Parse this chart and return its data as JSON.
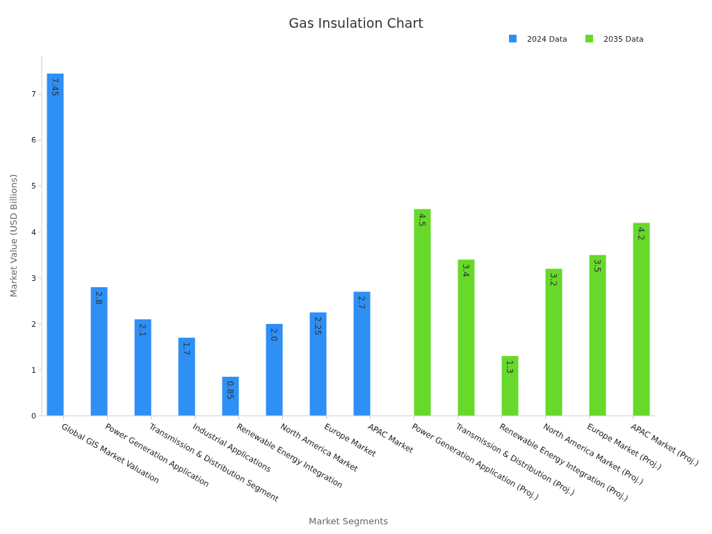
{
  "chart_data": {
    "type": "bar",
    "title": "Gas Insulation Chart",
    "xlabel": "Market Segments",
    "ylabel": "Market Value (USD Billions)",
    "categories": [
      "Global GIS Market Valuation",
      "Power Generation Application",
      "Transmission & Distribution Segment",
      "Industrial Applications",
      "Renewable Energy Integration",
      "North America Market",
      "Europe Market",
      "APAC Market",
      "Power Generation Application (Proj.)",
      "Transmission & Distribution (Proj.)",
      "Renewable Energy Integration (Proj.)",
      "North America Market (Proj.)",
      "Europe Market (Proj.)",
      "APAC Market (Proj.)"
    ],
    "series": [
      {
        "name": "2024 Data",
        "color": "#2e8ff5",
        "values": [
          7.45,
          2.8,
          2.1,
          1.7,
          0.85,
          2.0,
          2.25,
          2.7,
          null,
          null,
          null,
          null,
          null,
          null
        ],
        "value_labels": [
          "7.45",
          "2.8",
          "2.1",
          "1.7",
          "0.85",
          "2.0",
          "2.25",
          "2.7",
          null,
          null,
          null,
          null,
          null,
          null
        ]
      },
      {
        "name": "2035 Data",
        "color": "#66d92a",
        "values": [
          null,
          null,
          null,
          null,
          null,
          null,
          null,
          null,
          4.5,
          3.4,
          1.3,
          3.2,
          3.5,
          4.2
        ],
        "value_labels": [
          null,
          null,
          null,
          null,
          null,
          null,
          null,
          null,
          "4.5",
          "3.4",
          "1.3",
          "3.2",
          "3.5",
          "4.2"
        ]
      }
    ],
    "ylim": [
      0,
      7.84
    ],
    "yticks": [
      0,
      1,
      2,
      3,
      4,
      5,
      6,
      7
    ],
    "grid": false,
    "legend": "top right"
  }
}
